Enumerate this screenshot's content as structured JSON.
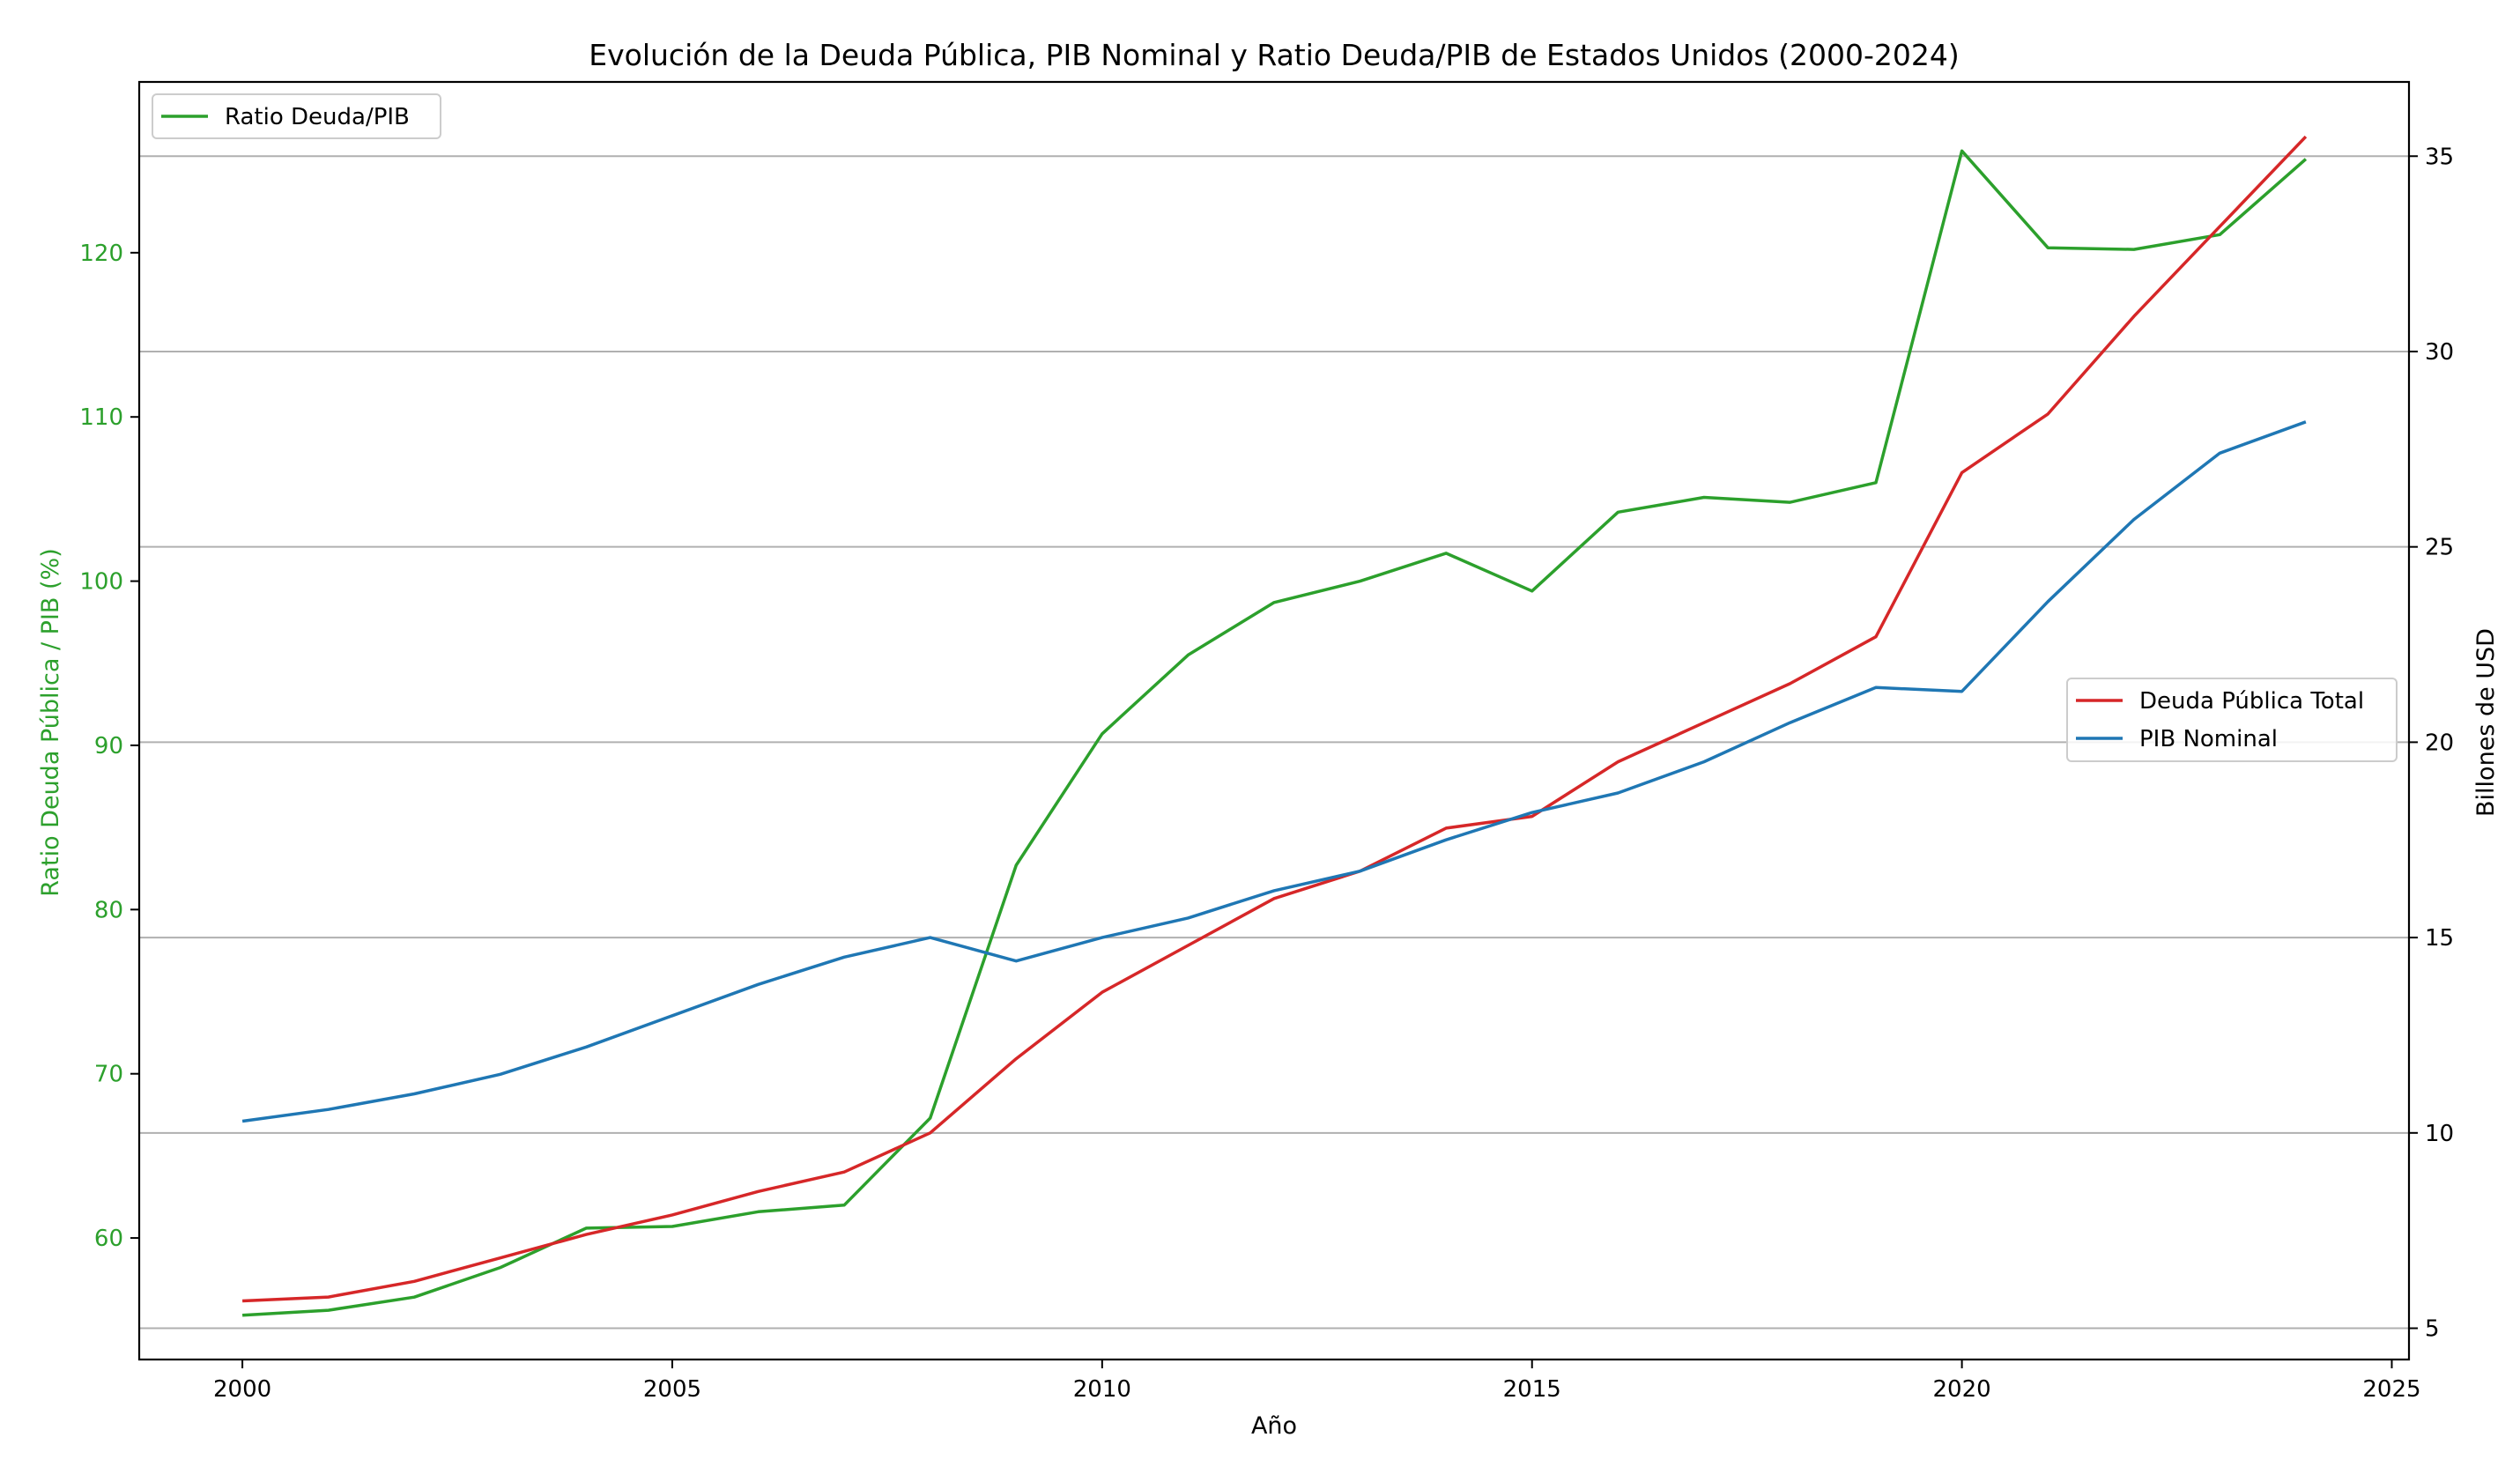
{
  "chart_data": {
    "type": "line",
    "title": "Evolución de la Deuda Pública, PIB Nominal y Ratio Deuda/PIB de Estados Unidos (2000-2024)",
    "xlabel": "Año",
    "x": [
      2000,
      2001,
      2002,
      2003,
      2004,
      2005,
      2006,
      2007,
      2008,
      2009,
      2010,
      2011,
      2012,
      2013,
      2014,
      2015,
      2016,
      2017,
      2018,
      2019,
      2020,
      2021,
      2022,
      2023,
      2024
    ],
    "xlim": [
      1998.8,
      2025.2
    ],
    "xticks": [
      2000,
      2005,
      2010,
      2015,
      2020,
      2025
    ],
    "y_left": {
      "label": "Ratio Deuda Pública / PIB (%)",
      "lim": [
        52.6,
        130.4
      ],
      "ticks": [
        60,
        70,
        80,
        90,
        100,
        110,
        120
      ],
      "color": "#2ca02c"
    },
    "y_right": {
      "label": "Billones de USD",
      "lim": [
        4.2,
        36.9
      ],
      "ticks": [
        5,
        10,
        15,
        20,
        25,
        30,
        35
      ],
      "color": "#000000",
      "grid": true
    },
    "series": [
      {
        "name": "Ratio Deuda/PIB",
        "axis": "left",
        "color": "#2ca02c",
        "values": [
          55.3,
          55.6,
          56.4,
          58.2,
          60.6,
          60.7,
          61.6,
          62.0,
          67.3,
          82.7,
          90.7,
          95.5,
          98.7,
          100.0,
          101.7,
          99.4,
          104.2,
          105.1,
          104.8,
          106.0,
          126.2,
          120.3,
          120.2,
          121.1,
          125.7
        ]
      },
      {
        "name": "Deuda Pública Total",
        "axis": "right",
        "color": "#d62728",
        "values": [
          5.7,
          5.8,
          6.2,
          6.8,
          7.4,
          7.9,
          8.5,
          9.0,
          10.0,
          11.9,
          13.6,
          14.8,
          16.0,
          16.7,
          17.8,
          18.1,
          19.5,
          20.5,
          21.5,
          22.7,
          26.9,
          28.4,
          30.9,
          33.2,
          35.5
        ]
      },
      {
        "name": "PIB Nominal",
        "axis": "right",
        "color": "#1f77b4",
        "values": [
          10.3,
          10.6,
          11.0,
          11.5,
          12.2,
          13.0,
          13.8,
          14.5,
          15.0,
          14.4,
          15.0,
          15.5,
          16.2,
          16.7,
          17.5,
          18.2,
          18.7,
          19.5,
          20.5,
          21.4,
          21.3,
          23.6,
          25.7,
          27.4,
          28.2
        ]
      }
    ],
    "legends": [
      {
        "placement": "upper-left",
        "entries": [
          "Ratio Deuda/PIB"
        ]
      },
      {
        "placement": "center-right",
        "entries": [
          "Deuda Pública Total",
          "PIB Nominal"
        ]
      }
    ]
  }
}
